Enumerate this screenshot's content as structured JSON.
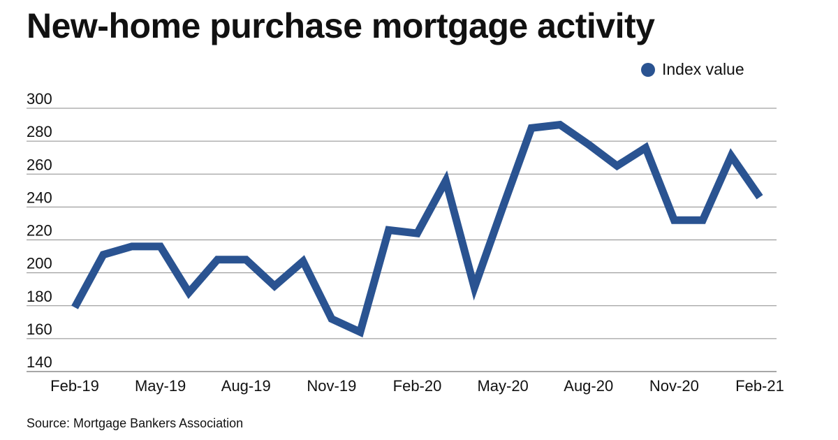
{
  "source": "Source: Mortgage Bankers Association",
  "colors": {
    "series": "#2a5391",
    "grid": "#8a8a8a",
    "text": "#111111"
  },
  "chart_data": {
    "type": "line",
    "title": "New-home purchase mortgage activity",
    "xlabel": "",
    "ylabel": "",
    "ylim": [
      140,
      300
    ],
    "yticks": [
      140,
      160,
      180,
      200,
      220,
      240,
      260,
      280,
      300
    ],
    "xtick_labels": [
      "Feb-19",
      "May-19",
      "Aug-19",
      "Nov-19",
      "Feb-20",
      "May-20",
      "Aug-20",
      "Nov-20",
      "Feb-21"
    ],
    "grid": true,
    "legend_position": "top-right",
    "x": [
      "Feb-19",
      "Mar-19",
      "Apr-19",
      "May-19",
      "Jun-19",
      "Jul-19",
      "Aug-19",
      "Sep-19",
      "Oct-19",
      "Nov-19",
      "Dec-19",
      "Jan-20",
      "Feb-20",
      "Mar-20",
      "Apr-20",
      "May-20",
      "Jun-20",
      "Jul-20",
      "Aug-20",
      "Sep-20",
      "Oct-20",
      "Nov-20",
      "Dec-20",
      "Jan-21",
      "Feb-21"
    ],
    "series": [
      {
        "name": "Index value",
        "values": [
          179,
          211,
          216,
          216,
          188,
          208,
          208,
          192,
          207,
          172,
          164,
          226,
          224,
          256,
          191,
          240,
          288,
          290,
          278,
          265,
          276,
          232,
          232,
          271,
          246
        ]
      }
    ]
  }
}
